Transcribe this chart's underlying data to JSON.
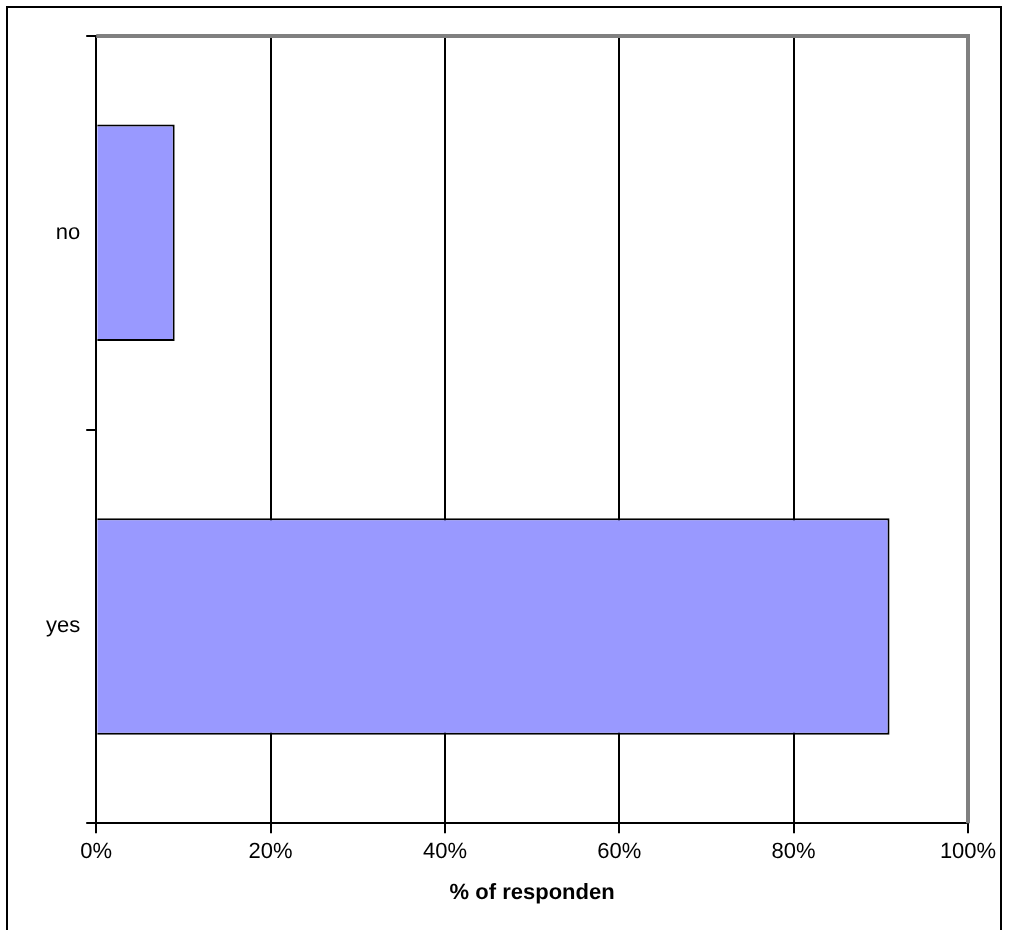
{
  "chart_data": {
    "type": "bar",
    "orientation": "horizontal",
    "categories": [
      "no",
      "yes"
    ],
    "values": [
      9,
      91
    ],
    "color": "#9999ff",
    "xlabel": "% of responden",
    "xlim": [
      0,
      100
    ],
    "xticks": [
      {
        "value": 0,
        "label": "0%"
      },
      {
        "value": 20,
        "label": "20%"
      },
      {
        "value": 40,
        "label": "40%"
      },
      {
        "value": 60,
        "label": "60%"
      },
      {
        "value": 80,
        "label": "80%"
      },
      {
        "value": 100,
        "label": "100%"
      }
    ],
    "grid": "x",
    "legend": false
  }
}
